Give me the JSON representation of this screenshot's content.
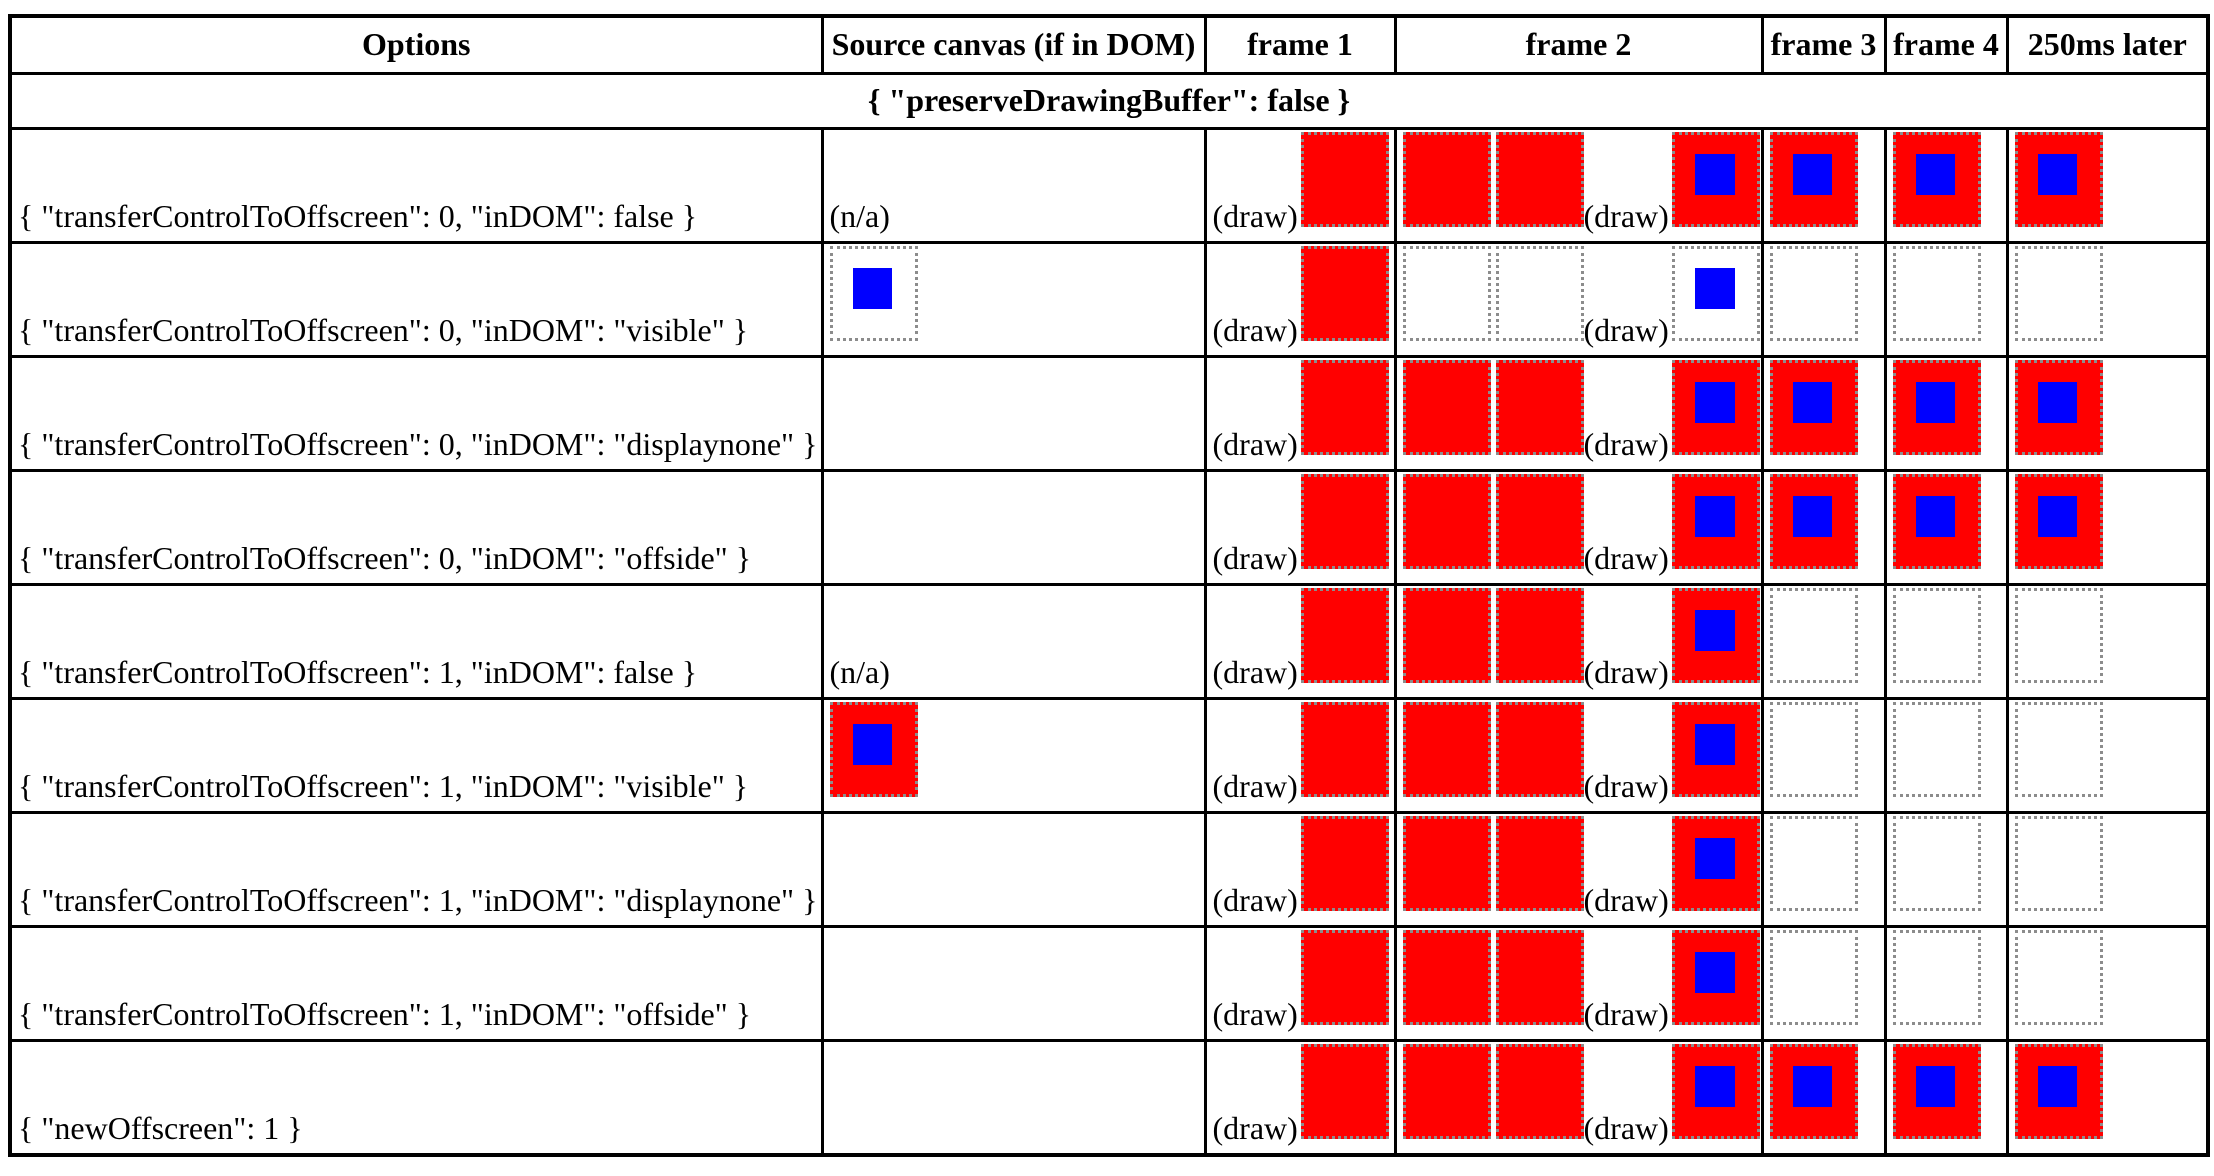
{
  "table": {
    "columns": [
      {
        "label": "Options"
      },
      {
        "label": "Source canvas (if in DOM)"
      },
      {
        "label": "frame 1"
      },
      {
        "label": "frame 2"
      },
      {
        "label": "frame 3"
      },
      {
        "label": "frame 4"
      },
      {
        "label": "250ms later"
      }
    ],
    "section_header": "{ \"preserveDrawingBuffer\": false }",
    "labels": {
      "draw": "(draw)",
      "not_applicable": "(n/a)"
    },
    "canvas_colors": {
      "red": "#ff0000",
      "blue": "#0000ff",
      "canvas_border": "#8c8c8c",
      "table_border": "#000000"
    },
    "canvas_legend": {
      "red": "solid red canvas",
      "red-blue": "red canvas with centered blue square",
      "white": "blank canvas (dotted outline only)",
      "white-blue": "blank canvas with blue square"
    },
    "rows": [
      {
        "options": "{ \"transferControlToOffscreen\": 0, \"inDOM\": false }",
        "source": "na",
        "frame1": [
          "draw",
          "red"
        ],
        "frame2": [
          "red",
          "red",
          "draw",
          "red-blue"
        ],
        "frame3": [
          "red-blue"
        ],
        "frame4": [
          "red-blue"
        ],
        "later": [
          "red-blue"
        ]
      },
      {
        "options": "{ \"transferControlToOffscreen\": 0, \"inDOM\": \"visible\" }",
        "source": "white-blue",
        "frame1": [
          "draw",
          "red"
        ],
        "frame2": [
          "white",
          "white",
          "draw",
          "white-blue"
        ],
        "frame3": [
          "white"
        ],
        "frame4": [
          "white"
        ],
        "later": [
          "white"
        ]
      },
      {
        "options": "{ \"transferControlToOffscreen\": 0, \"inDOM\": \"displaynone\" }",
        "source": "",
        "frame1": [
          "draw",
          "red"
        ],
        "frame2": [
          "red",
          "red",
          "draw",
          "red-blue"
        ],
        "frame3": [
          "red-blue"
        ],
        "frame4": [
          "red-blue"
        ],
        "later": [
          "red-blue"
        ]
      },
      {
        "options": "{ \"transferControlToOffscreen\": 0, \"inDOM\": \"offside\" }",
        "source": "",
        "frame1": [
          "draw",
          "red"
        ],
        "frame2": [
          "red",
          "red",
          "draw",
          "red-blue"
        ],
        "frame3": [
          "red-blue"
        ],
        "frame4": [
          "red-blue"
        ],
        "later": [
          "red-blue"
        ]
      },
      {
        "options": "{ \"transferControlToOffscreen\": 1, \"inDOM\": false }",
        "source": "na",
        "frame1": [
          "draw",
          "red"
        ],
        "frame2": [
          "red",
          "red",
          "draw",
          "red-blue"
        ],
        "frame3": [
          "white"
        ],
        "frame4": [
          "white"
        ],
        "later": [
          "white"
        ]
      },
      {
        "options": "{ \"transferControlToOffscreen\": 1, \"inDOM\": \"visible\" }",
        "source": "red-blue",
        "frame1": [
          "draw",
          "red"
        ],
        "frame2": [
          "red",
          "red",
          "draw",
          "red-blue"
        ],
        "frame3": [
          "white"
        ],
        "frame4": [
          "white"
        ],
        "later": [
          "white"
        ]
      },
      {
        "options": "{ \"transferControlToOffscreen\": 1, \"inDOM\": \"displaynone\" }",
        "source": "",
        "frame1": [
          "draw",
          "red"
        ],
        "frame2": [
          "red",
          "red",
          "draw",
          "red-blue"
        ],
        "frame3": [
          "white"
        ],
        "frame4": [
          "white"
        ],
        "later": [
          "white"
        ]
      },
      {
        "options": "{ \"transferControlToOffscreen\": 1, \"inDOM\": \"offside\" }",
        "source": "",
        "frame1": [
          "draw",
          "red"
        ],
        "frame2": [
          "red",
          "red",
          "draw",
          "red-blue"
        ],
        "frame3": [
          "white"
        ],
        "frame4": [
          "white"
        ],
        "later": [
          "white"
        ]
      },
      {
        "options": "{ \"newOffscreen\": 1 }",
        "source": "",
        "frame1": [
          "draw",
          "red"
        ],
        "frame2": [
          "red",
          "red",
          "draw",
          "red-blue"
        ],
        "frame3": [
          "red-blue"
        ],
        "frame4": [
          "red-blue"
        ],
        "later": [
          "red-blue"
        ]
      }
    ]
  }
}
